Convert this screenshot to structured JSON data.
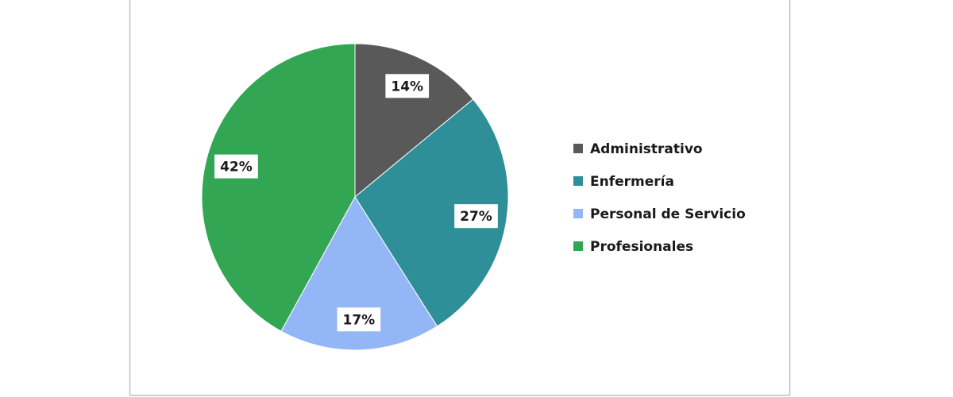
{
  "chart_data": {
    "type": "pie",
    "categories": [
      "Administrativo",
      "Enfermería",
      "Personal de Servicio",
      "Profesionales"
    ],
    "values": [
      14,
      27,
      17,
      42
    ],
    "value_labels": [
      "14%",
      "27%",
      "17%",
      "42%"
    ],
    "colors": [
      "#595959",
      "#2f8f99",
      "#93b6f7",
      "#33a654"
    ],
    "legend": "right"
  }
}
